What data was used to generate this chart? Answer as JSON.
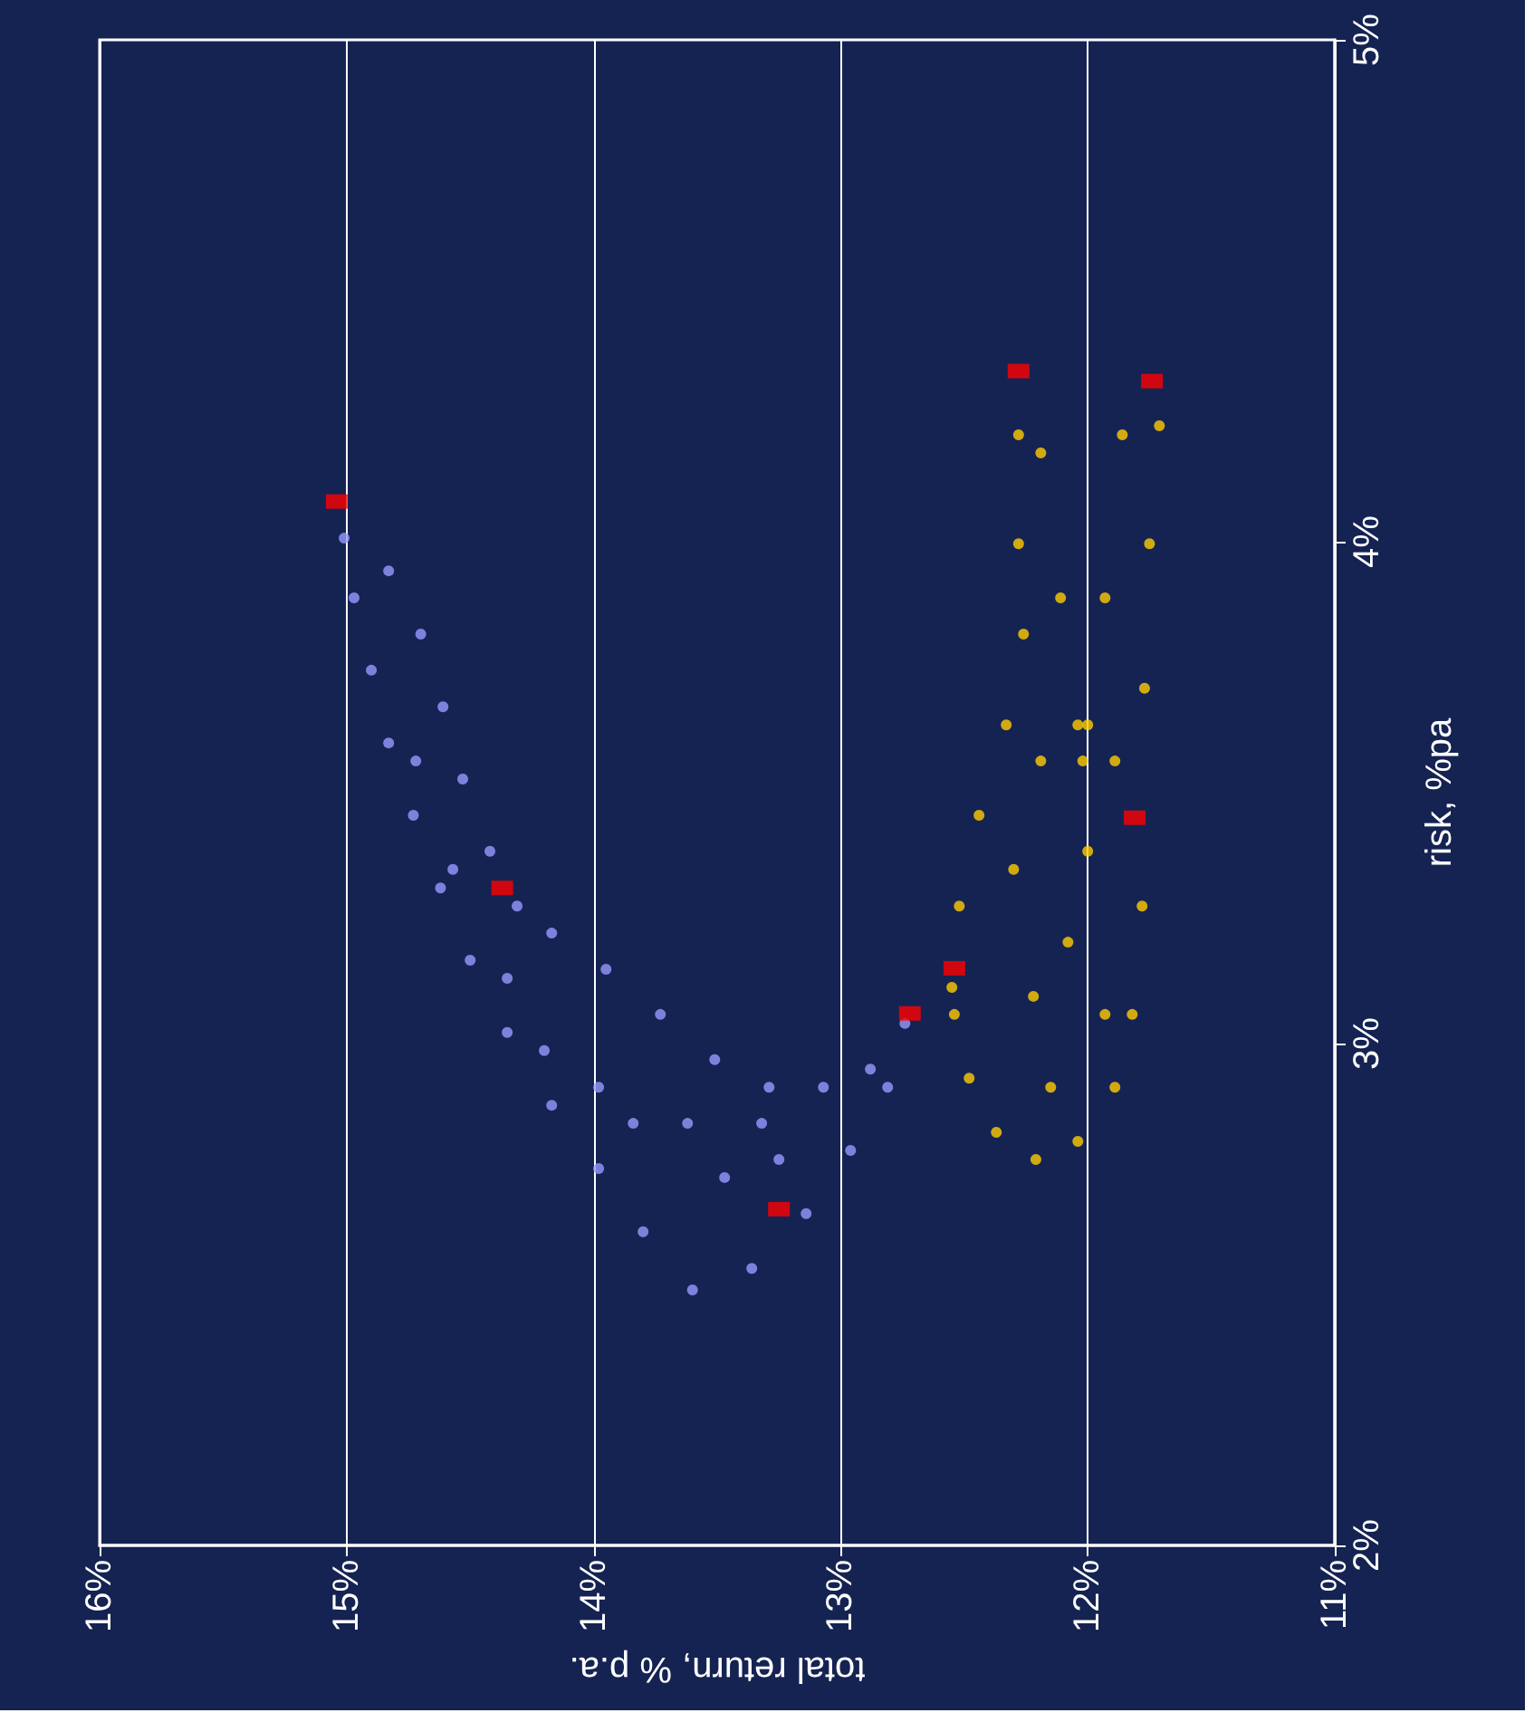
{
  "chart_data": {
    "type": "scatter",
    "xlabel": "total return, % p.a.",
    "ylabel": "risk, %pa",
    "xlim": [
      16,
      11
    ],
    "xticks": [
      {
        "value": 16,
        "label": "16%"
      },
      {
        "value": 15,
        "label": "15%"
      },
      {
        "value": 14,
        "label": "14%"
      },
      {
        "value": 13,
        "label": "13%"
      },
      {
        "value": 12,
        "label": "12%"
      },
      {
        "value": 11,
        "label": "11%"
      }
    ],
    "ylim": [
      2,
      5
    ],
    "yticks": [
      {
        "value": 2,
        "label": "2%"
      },
      {
        "value": 3,
        "label": "3%"
      },
      {
        "value": 4,
        "label": "4%"
      },
      {
        "value": 5,
        "label": "5%"
      }
    ],
    "grid": "x",
    "series": [
      {
        "color": "#9999ff",
        "marker": "circle",
        "x": [
          15.01,
          14.97,
          14.9,
          14.83,
          14.73,
          14.62,
          14.5,
          14.35,
          14.17,
          13.98,
          13.8,
          13.6,
          13.36,
          13.14,
          12.96,
          12.81,
          12.74,
          12.88,
          13.07,
          13.29,
          13.51,
          13.73,
          13.95,
          14.17,
          14.31,
          14.42,
          14.53,
          14.61,
          14.7,
          14.83,
          14.2,
          13.84,
          13.47,
          13.25,
          14.57,
          14.35,
          13.98,
          13.62,
          13.32,
          14.72
        ],
        "values": [
          4.007,
          3.888,
          3.744,
          3.599,
          3.455,
          3.31,
          3.166,
          3.022,
          2.877,
          2.751,
          2.625,
          2.509,
          2.552,
          2.661,
          2.787,
          2.913,
          3.04,
          2.949,
          2.913,
          2.913,
          2.968,
          3.058,
          3.148,
          3.22,
          3.274,
          3.383,
          3.527,
          3.671,
          3.816,
          3.942,
          2.986,
          2.841,
          2.733,
          2.769,
          3.347,
          3.13,
          2.913,
          2.841,
          2.841,
          3.563
        ]
      },
      {
        "color": "#ffcc00",
        "marker": "circle",
        "x": [
          12.55,
          12.54,
          12.48,
          12.37,
          12.21,
          12.04,
          11.89,
          11.82,
          11.78,
          11.77,
          11.75,
          11.71,
          11.86,
          11.93,
          12.0,
          12.02,
          12.04,
          12.11,
          12.19,
          12.28,
          12.28,
          12.26,
          12.33,
          12.44,
          12.52,
          12.22,
          12.08,
          12.3,
          12.0,
          11.93,
          12.15,
          12.19,
          11.89
        ],
        "values": [
          3.112,
          3.058,
          2.931,
          2.823,
          2.769,
          2.805,
          2.913,
          3.058,
          3.274,
          3.708,
          3.996,
          4.231,
          4.213,
          3.888,
          3.635,
          3.563,
          3.635,
          3.888,
          4.177,
          4.213,
          3.996,
          3.816,
          3.635,
          3.455,
          3.274,
          3.094,
          3.202,
          3.347,
          3.383,
          3.058,
          2.913,
          3.563,
          3.563
        ]
      },
      {
        "color": "#ff0000",
        "marker": "square",
        "x": [
          15.04,
          14.37,
          12.72,
          13.25,
          12.54,
          12.28,
          11.81,
          11.74
        ],
        "values": [
          4.08,
          3.31,
          3.06,
          2.67,
          3.15,
          4.34,
          3.45,
          4.32
        ]
      }
    ]
  }
}
